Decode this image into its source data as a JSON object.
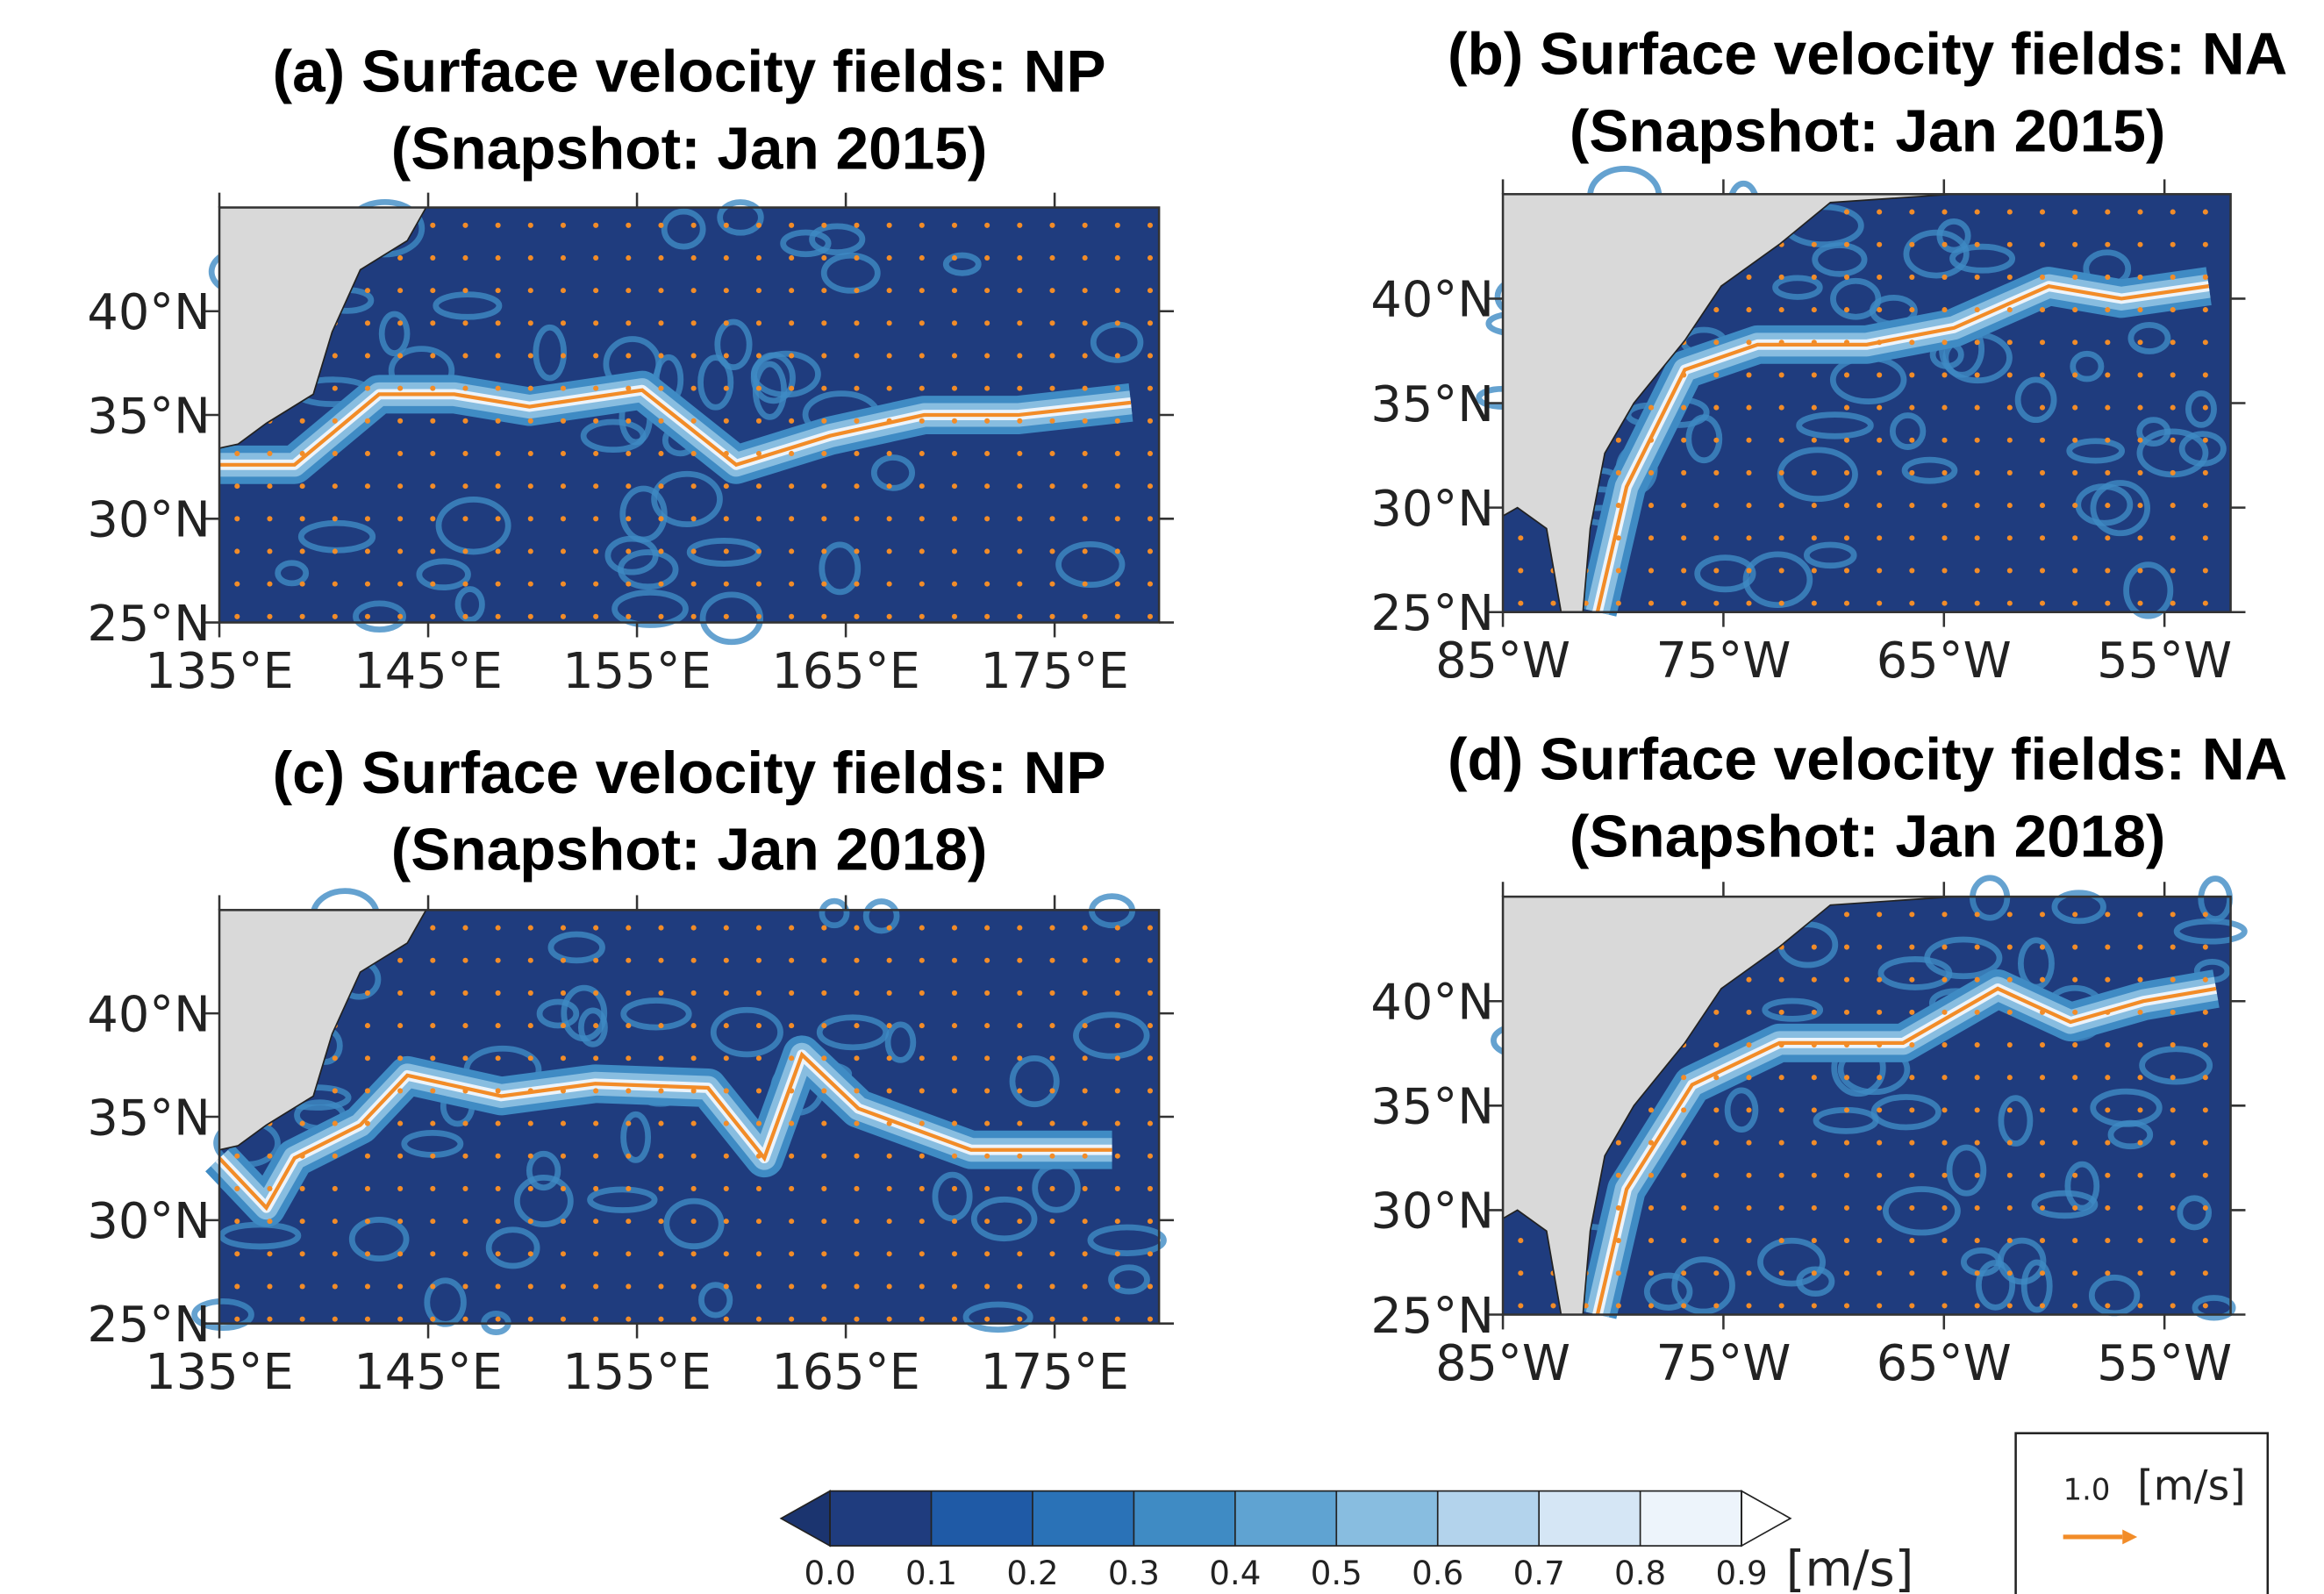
{
  "chart_data": [
    {
      "type": "map",
      "title": "(a) Surface velocity fields: NP",
      "subtitle": "(Snapshot: Jan 2015)",
      "xlim": [
        135,
        180
      ],
      "ylim": [
        25,
        45
      ],
      "xticks": [
        {
          "value": 135,
          "label": "135°E"
        },
        {
          "value": 145,
          "label": "145°E"
        },
        {
          "value": 155,
          "label": "155°E"
        },
        {
          "value": 165,
          "label": "165°E"
        },
        {
          "value": 175,
          "label": "175°E"
        }
      ],
      "yticks": [
        {
          "value": 25,
          "label": "25°N"
        },
        {
          "value": 30,
          "label": "30°N"
        },
        {
          "value": 35,
          "label": "35°N"
        },
        {
          "value": 40,
          "label": "40°N"
        }
      ]
    },
    {
      "type": "map",
      "title": "(b) Surface velocity fields: NA",
      "subtitle": "(Snapshot: Jan 2015)",
      "xlim": [
        -85,
        -52
      ],
      "ylim": [
        25,
        45
      ],
      "xticks": [
        {
          "value": -85,
          "label": "85°W"
        },
        {
          "value": -75,
          "label": "75°W"
        },
        {
          "value": -65,
          "label": "65°W"
        },
        {
          "value": -55,
          "label": "55°W"
        }
      ],
      "yticks": [
        {
          "value": 25,
          "label": "25°N"
        },
        {
          "value": 30,
          "label": "30°N"
        },
        {
          "value": 35,
          "label": "35°N"
        },
        {
          "value": 40,
          "label": "40°N"
        }
      ]
    },
    {
      "type": "map",
      "title": "(c) Surface velocity fields: NP",
      "subtitle": "(Snapshot: Jan 2018)",
      "xlim": [
        135,
        180
      ],
      "ylim": [
        25,
        45
      ],
      "xticks": [
        {
          "value": 135,
          "label": "135°E"
        },
        {
          "value": 145,
          "label": "145°E"
        },
        {
          "value": 155,
          "label": "155°E"
        },
        {
          "value": 165,
          "label": "165°E"
        },
        {
          "value": 175,
          "label": "175°E"
        }
      ],
      "yticks": [
        {
          "value": 25,
          "label": "25°N"
        },
        {
          "value": 30,
          "label": "30°N"
        },
        {
          "value": 35,
          "label": "35°N"
        },
        {
          "value": 40,
          "label": "40°N"
        }
      ]
    },
    {
      "type": "map",
      "title": "(d) Surface velocity fields: NA",
      "subtitle": "(Snapshot: Jan 2018)",
      "xlim": [
        -85,
        -52
      ],
      "ylim": [
        25,
        45
      ],
      "xticks": [
        {
          "value": -85,
          "label": "85°W"
        },
        {
          "value": -75,
          "label": "75°W"
        },
        {
          "value": -65,
          "label": "65°W"
        },
        {
          "value": -55,
          "label": "55°W"
        }
      ],
      "yticks": [
        {
          "value": 25,
          "label": "25°N"
        },
        {
          "value": 30,
          "label": "30°N"
        },
        {
          "value": 35,
          "label": "35°N"
        },
        {
          "value": 40,
          "label": "40°N"
        }
      ]
    },
    {
      "type": "colorbar",
      "label": "[m/s]",
      "xlim": [
        0,
        0.9
      ],
      "xticks": [
        {
          "value": 0,
          "label": "0.0"
        },
        0.1,
        0.2,
        0.3,
        0.4,
        0.5,
        0.6,
        0.7,
        0.8,
        0.9
      ],
      "colors": [
        "#1f3c7e",
        "#1f5aa6",
        "#2a72b7",
        "#3f8bc4",
        "#5fa3d2",
        "#88bde0",
        "#b3d3ec",
        "#d5e6f5",
        "#edf4fb"
      ],
      "under_color": "#1b346f",
      "over_color": "#ffffff"
    },
    {
      "type": "reference-vector",
      "value": {
        "value": 1,
        "label": "1.0"
      },
      "unit": "[m/s]",
      "color": "#f28c28"
    }
  ]
}
